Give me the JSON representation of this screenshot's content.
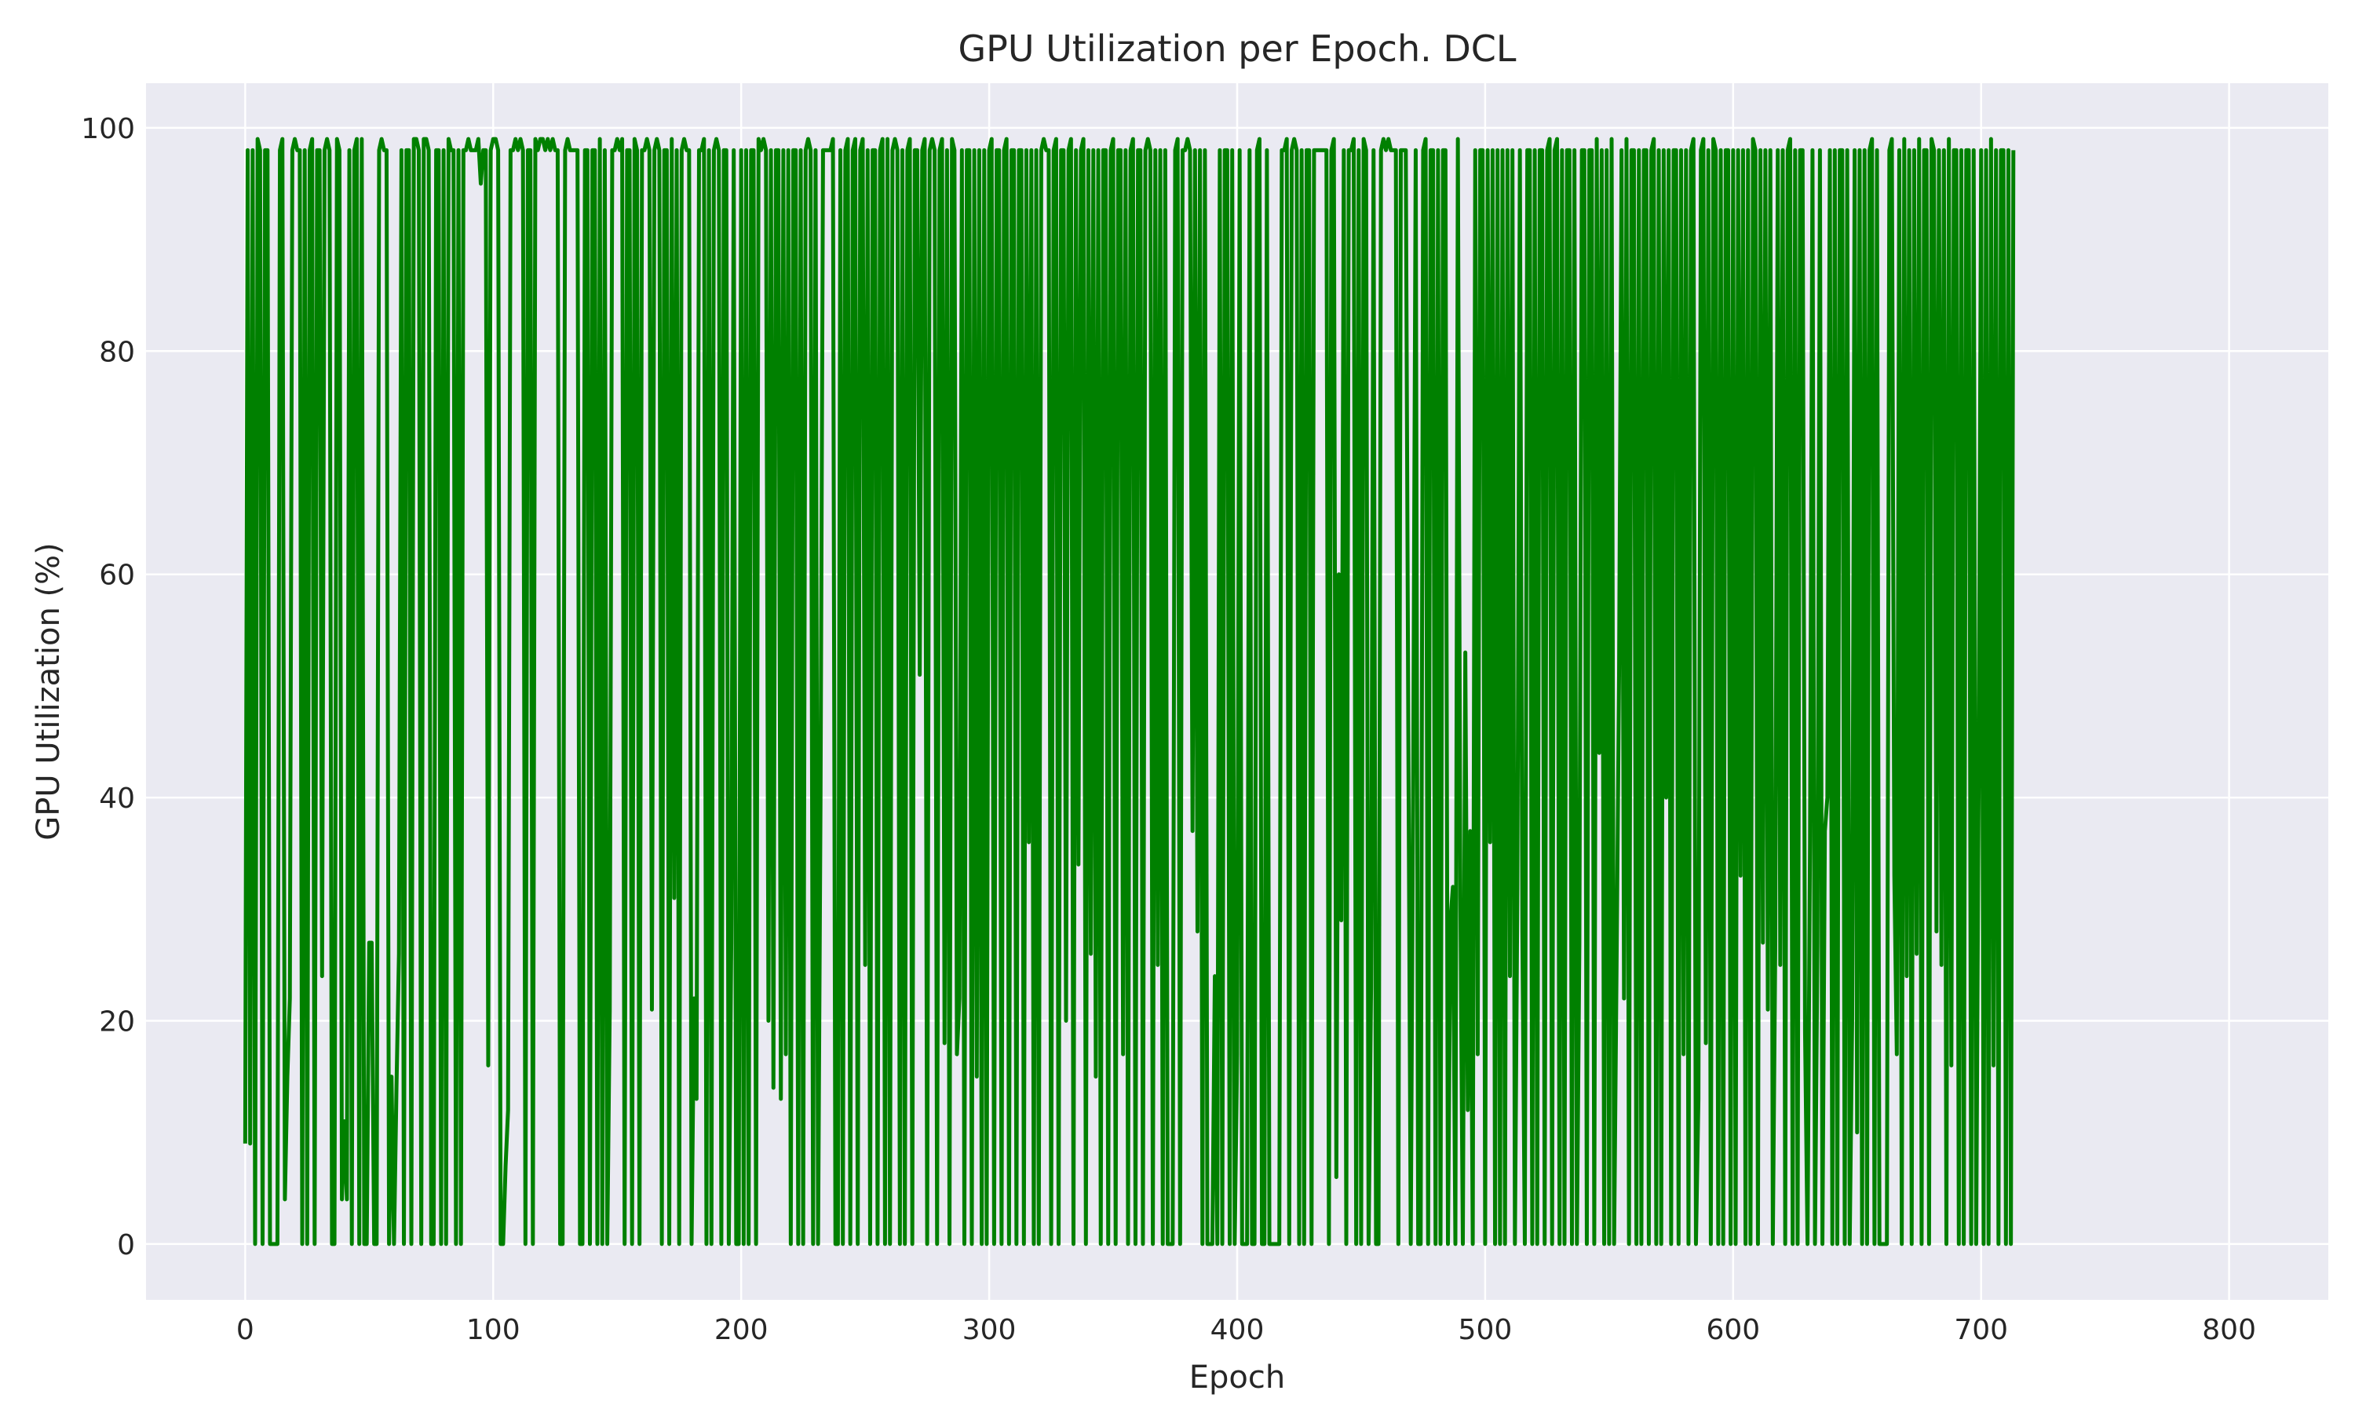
{
  "chart_data": {
    "type": "line",
    "title": "GPU Utilization per Epoch. DCL",
    "xlabel": "Epoch",
    "ylabel": "GPU Utilization (%)",
    "xlim": [
      -40,
      840
    ],
    "ylim": [
      -5,
      104
    ],
    "xticks": [
      0,
      100,
      200,
      300,
      400,
      500,
      600,
      700,
      800
    ],
    "yticks": [
      0,
      20,
      40,
      60,
      80,
      100
    ],
    "grid": true,
    "legend": "none",
    "colors": {
      "line": "#008000",
      "plot_bg": "#eaeaf2",
      "grid": "#ffffff"
    },
    "series": [
      {
        "x_start": 0,
        "x_step": 1,
        "values": [
          9,
          98,
          9,
          98,
          0,
          99,
          98,
          0,
          98,
          98,
          0,
          0,
          0,
          0,
          98,
          99,
          4,
          15,
          22,
          98,
          99,
          98,
          98,
          0,
          98,
          0,
          98,
          99,
          0,
          98,
          98,
          24,
          98,
          99,
          98,
          0,
          0,
          99,
          98,
          4,
          11,
          4,
          98,
          0,
          98,
          99,
          0,
          99,
          0,
          0,
          27,
          27,
          0,
          0,
          98,
          99,
          98,
          98,
          0,
          15,
          0,
          14,
          26,
          98,
          0,
          98,
          98,
          0,
          99,
          99,
          98,
          0,
          99,
          99,
          98,
          0,
          0,
          98,
          98,
          0,
          98,
          0,
          99,
          98,
          98,
          0,
          98,
          0,
          98,
          98,
          99,
          98,
          98,
          98,
          99,
          95,
          98,
          98,
          16,
          98,
          99,
          99,
          98,
          0,
          0,
          7,
          12,
          98,
          98,
          99,
          98,
          99,
          98,
          0,
          98,
          98,
          0,
          99,
          98,
          99,
          99,
          98,
          99,
          98,
          99,
          98,
          98,
          0,
          0,
          98,
          99,
          98,
          98,
          98,
          98,
          0,
          0,
          98,
          98,
          0,
          98,
          98,
          0,
          99,
          0,
          98,
          0,
          21,
          98,
          98,
          99,
          98,
          99,
          0,
          98,
          98,
          0,
          99,
          98,
          0,
          98,
          98,
          99,
          98,
          21,
          98,
          99,
          98,
          0,
          98,
          98,
          0,
          99,
          31,
          98,
          0,
          98,
          99,
          98,
          98,
          0,
          22,
          13,
          98,
          98,
          99,
          0,
          98,
          0,
          98,
          99,
          98,
          0,
          98,
          98,
          0,
          27,
          98,
          0,
          0,
          98,
          0,
          98,
          0,
          98,
          98,
          0,
          99,
          98,
          99,
          98,
          20,
          98,
          14,
          98,
          98,
          13,
          98,
          17,
          98,
          0,
          98,
          98,
          0,
          98,
          0,
          98,
          99,
          98,
          0,
          98,
          0,
          40,
          98,
          98,
          98,
          98,
          99,
          0,
          0,
          98,
          0,
          98,
          99,
          0,
          98,
          99,
          0,
          98,
          99,
          25,
          98,
          0,
          98,
          98,
          0,
          98,
          99,
          0,
          99,
          0,
          98,
          99,
          98,
          0,
          98,
          0,
          98,
          99,
          0,
          98,
          98,
          51,
          98,
          99,
          0,
          98,
          99,
          98,
          0,
          98,
          99,
          18,
          98,
          0,
          99,
          98,
          17,
          22,
          98,
          0,
          98,
          98,
          0,
          98,
          15,
          98,
          0,
          98,
          0,
          98,
          99,
          0,
          98,
          98,
          0,
          98,
          99,
          0,
          98,
          98,
          0,
          98,
          98,
          0,
          98,
          36,
          98,
          0,
          98,
          0,
          98,
          99,
          98,
          98,
          0,
          98,
          99,
          0,
          98,
          98,
          20,
          98,
          99,
          0,
          98,
          34,
          98,
          99,
          0,
          98,
          26,
          98,
          15,
          98,
          0,
          98,
          98,
          0,
          98,
          99,
          0,
          98,
          98,
          17,
          98,
          0,
          98,
          99,
          0,
          98,
          98,
          0,
          98,
          99,
          98,
          0,
          98,
          25,
          98,
          0,
          98,
          0,
          0,
          0,
          98,
          99,
          0,
          98,
          98,
          99,
          98,
          37,
          98,
          28,
          98,
          0,
          98,
          0,
          0,
          0,
          24,
          0,
          98,
          0,
          98,
          98,
          0,
          98,
          0,
          17,
          98,
          0,
          0,
          0,
          98,
          0,
          0,
          98,
          99,
          0,
          0,
          98,
          0,
          0,
          0,
          0,
          0,
          98,
          98,
          99,
          0,
          98,
          99,
          98,
          0,
          98,
          0,
          98,
          98,
          0,
          98,
          98,
          98,
          98,
          98,
          98,
          0,
          98,
          99,
          6,
          60,
          29,
          98,
          0,
          98,
          98,
          99,
          0,
          98,
          0,
          99,
          98,
          0,
          23,
          98,
          0,
          0,
          98,
          99,
          98,
          99,
          98,
          98,
          98,
          0,
          98,
          98,
          98,
          47,
          0,
          43,
          98,
          0,
          0,
          98,
          99,
          0,
          98,
          98,
          0,
          98,
          0,
          98,
          98,
          0,
          29,
          32,
          0,
          99,
          31,
          0,
          53,
          12,
          37,
          0,
          98,
          17,
          98,
          98,
          0,
          98,
          36,
          98,
          0,
          98,
          0,
          98,
          0,
          98,
          24,
          98,
          0,
          32,
          98,
          28,
          0,
          98,
          98,
          0,
          98,
          0,
          98,
          98,
          0,
          98,
          99,
          0,
          98,
          99,
          0,
          98,
          0,
          98,
          98,
          0,
          98,
          0,
          27,
          98,
          98,
          0,
          98,
          98,
          0,
          99,
          44,
          98,
          0,
          98,
          0,
          99,
          0,
          25,
          51,
          98,
          22,
          99,
          0,
          98,
          98,
          0,
          98,
          0,
          98,
          98,
          0,
          98,
          99,
          0,
          98,
          0,
          98,
          40,
          98,
          0,
          98,
          98,
          0,
          98,
          17,
          98,
          0,
          98,
          99,
          0,
          13,
          98,
          99,
          18,
          98,
          0,
          99,
          98,
          0,
          98,
          0,
          98,
          98,
          0,
          98,
          0,
          98,
          33,
          98,
          0,
          98,
          0,
          99,
          98,
          0,
          98,
          27,
          98,
          21,
          98,
          0,
          27,
          98,
          25,
          98,
          0,
          98,
          99,
          0,
          98,
          0,
          98,
          98,
          19,
          0,
          36,
          98,
          0,
          27,
          98,
          0,
          37,
          40,
          98,
          0,
          98,
          0,
          98,
          98,
          0,
          98,
          0,
          20,
          98,
          10,
          98,
          0,
          98,
          0,
          98,
          99,
          0,
          98,
          0,
          0,
          0,
          0,
          98,
          99,
          33,
          17,
          98,
          0,
          99,
          24,
          98,
          0,
          98,
          26,
          99,
          0,
          98,
          98,
          0,
          99,
          98,
          28,
          98,
          25,
          98,
          0,
          99,
          16,
          98,
          98,
          0,
          98,
          0,
          98,
          98,
          0,
          98,
          0,
          41,
          98,
          0,
          98,
          0,
          99,
          16,
          98,
          0,
          98,
          98,
          0,
          98,
          0,
          98
        ]
      }
    ]
  }
}
